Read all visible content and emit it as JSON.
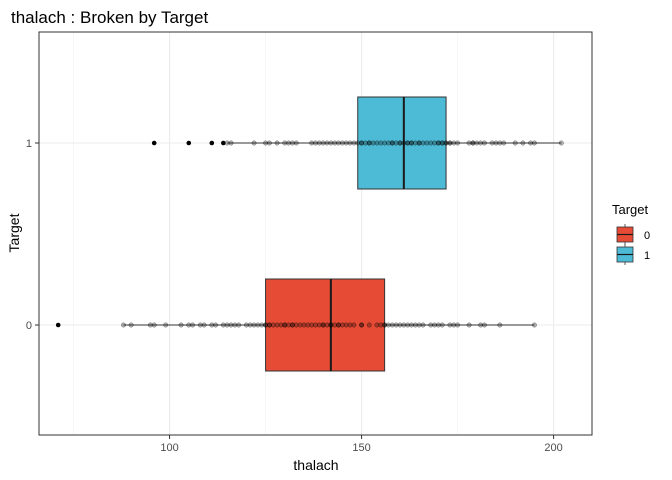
{
  "chart_data": {
    "type": "boxplot",
    "title": "thalach : Broken by Target",
    "xlabel": "thalach",
    "ylabel": "Target",
    "orientation": "horizontal",
    "xlim": [
      66,
      210
    ],
    "x_ticks": [
      100,
      150,
      200
    ],
    "y_categories": [
      "0",
      "1"
    ],
    "grid": true,
    "legend": {
      "title": "Target",
      "position": "right",
      "entries": [
        "0",
        "1"
      ]
    },
    "colors": {
      "0": "#E64B35",
      "1": "#4DBBD5"
    },
    "series": [
      {
        "name": "0",
        "min": 88,
        "q1": 125,
        "median": 142,
        "q3": 156,
        "max": 195,
        "outliers": [
          71
        ],
        "points": [
          88,
          90,
          95,
          96,
          99,
          103,
          105,
          106,
          108,
          109,
          111,
          112,
          114,
          115,
          116,
          117,
          118,
          120,
          121,
          122,
          123,
          124,
          125,
          125,
          126,
          126,
          127,
          128,
          129,
          130,
          130,
          131,
          132,
          132,
          133,
          134,
          135,
          136,
          137,
          138,
          139,
          140,
          140,
          141,
          142,
          142,
          143,
          144,
          144,
          145,
          146,
          147,
          148,
          150,
          150,
          152,
          154,
          155,
          156,
          156,
          157,
          158,
          159,
          160,
          161,
          162,
          163,
          164,
          165,
          166,
          168,
          169,
          170,
          171,
          173,
          174,
          175,
          178,
          181,
          182,
          186,
          195
        ]
      },
      {
        "name": "1",
        "min": 115,
        "q1": 149,
        "median": 161,
        "q3": 172,
        "max": 202,
        "outliers": [
          96,
          105,
          111,
          114
        ],
        "points": [
          115,
          116,
          122,
          125,
          126,
          128,
          130,
          131,
          132,
          133,
          137,
          138,
          139,
          140,
          141,
          142,
          143,
          144,
          145,
          146,
          147,
          148,
          149,
          150,
          150,
          151,
          152,
          152,
          153,
          154,
          155,
          156,
          157,
          158,
          158,
          159,
          160,
          160,
          161,
          162,
          162,
          163,
          163,
          164,
          165,
          165,
          166,
          167,
          168,
          169,
          170,
          170,
          171,
          171,
          172,
          172,
          173,
          173,
          174,
          175,
          178,
          179,
          179,
          180,
          181,
          182,
          184,
          185,
          186,
          187,
          190,
          192,
          194,
          195,
          202
        ]
      }
    ]
  }
}
